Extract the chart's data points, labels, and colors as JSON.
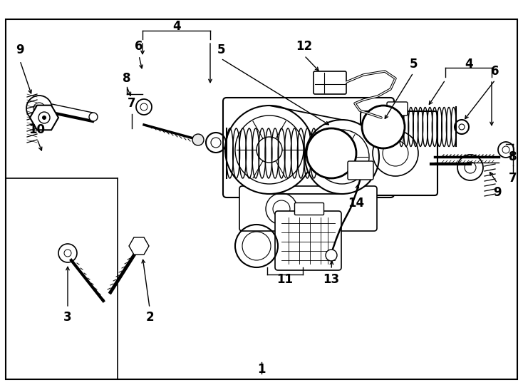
{
  "bg_color": "#ffffff",
  "lc": "#000000",
  "fig_width": 7.34,
  "fig_height": 5.4,
  "dpi": 100,
  "label_fontsize": 12,
  "label_fontsize_sm": 11
}
